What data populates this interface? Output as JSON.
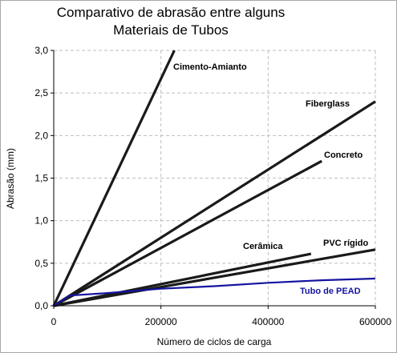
{
  "chart_data": {
    "type": "line",
    "title_lines": [
      "Comparativo de abrasão entre alguns",
      "Materiais de Tubos"
    ],
    "xlabel": "Número de ciclos de carga",
    "ylabel": "Abrasão (mm)",
    "xlim": [
      0,
      600000
    ],
    "ylim": [
      0,
      3.0
    ],
    "x_ticks": [
      0,
      200000,
      400000,
      600000
    ],
    "x_tick_labels": [
      "0",
      "200000",
      "400000",
      "600000"
    ],
    "y_ticks": [
      0,
      0.5,
      1.0,
      1.5,
      2.0,
      2.5,
      3.0
    ],
    "y_tick_labels": [
      "0,0",
      "0,5",
      "1,0",
      "1,5",
      "2,0",
      "2,5",
      "3,0"
    ],
    "grid": "dashed",
    "legend": "inline labels",
    "series": [
      {
        "name": "Cimento-Amianto",
        "color": "#1a1a1a",
        "x": [
          0,
          225000
        ],
        "y": [
          0.0,
          3.0
        ]
      },
      {
        "name": "Fiberglass",
        "color": "#1a1a1a",
        "x": [
          0,
          600000
        ],
        "y": [
          0.0,
          2.4
        ]
      },
      {
        "name": "Concreto",
        "color": "#1a1a1a",
        "x": [
          0,
          500000
        ],
        "y": [
          0.0,
          1.7
        ]
      },
      {
        "name": "Cerâmica",
        "color": "#1a1a1a",
        "x": [
          0,
          480000
        ],
        "y": [
          0.0,
          0.61
        ]
      },
      {
        "name": "PVC rígido",
        "color": "#1a1a1a",
        "x": [
          0,
          600000
        ],
        "y": [
          0.0,
          0.66
        ]
      },
      {
        "name": "Tubo de PEAD",
        "color": "#1414a0",
        "x": [
          0,
          30000,
          100000,
          200000,
          300000,
          400000,
          500000,
          600000
        ],
        "y": [
          0.0,
          0.12,
          0.15,
          0.2,
          0.23,
          0.27,
          0.3,
          0.32
        ]
      }
    ]
  }
}
